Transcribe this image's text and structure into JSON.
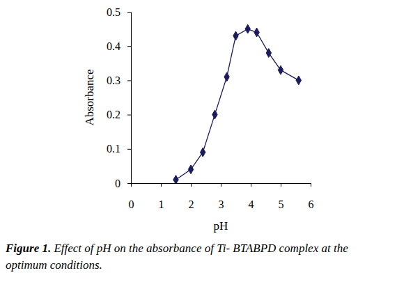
{
  "chart_data": {
    "type": "line",
    "title": "Figure 1.",
    "subtitle": "Effect of pH on the absorbance of Ti- BTABPD complex at the optimum conditions.",
    "x_label": "pH",
    "y_label": "Absorbance",
    "x": [
      1.5,
      2.0,
      2.4,
      2.8,
      3.2,
      3.5,
      3.9,
      4.2,
      4.6,
      5.0,
      5.6
    ],
    "values": [
      0.01,
      0.04,
      0.09,
      0.2,
      0.31,
      0.43,
      0.45,
      0.44,
      0.38,
      0.33,
      0.3
    ],
    "color": "#1c1c5c",
    "marker": "diamond",
    "line_style": "solid",
    "xlim": [
      0,
      6
    ],
    "xticks": [
      0,
      1,
      2,
      3,
      4,
      5,
      6
    ],
    "ylim": [
      0,
      0.5
    ],
    "yticks": [
      0,
      0.1,
      0.2,
      0.3,
      0.4,
      0.5
    ],
    "grid": false
  }
}
